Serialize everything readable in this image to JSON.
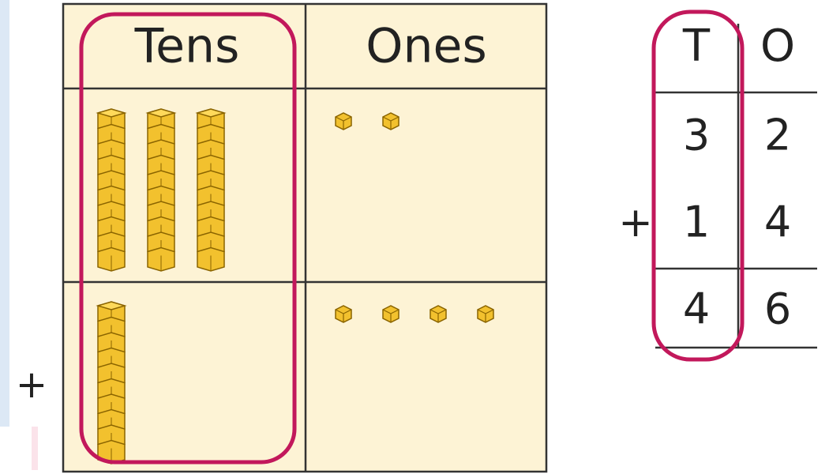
{
  "place_value_chart": {
    "headers": [
      "Tens",
      "Ones"
    ],
    "operator": "+"
  },
  "column_addition": {
    "headers": [
      "T",
      "O"
    ],
    "operator": "+",
    "rows": [
      [
        3,
        2
      ],
      [
        1,
        4
      ],
      [
        4,
        6
      ]
    ]
  }
}
